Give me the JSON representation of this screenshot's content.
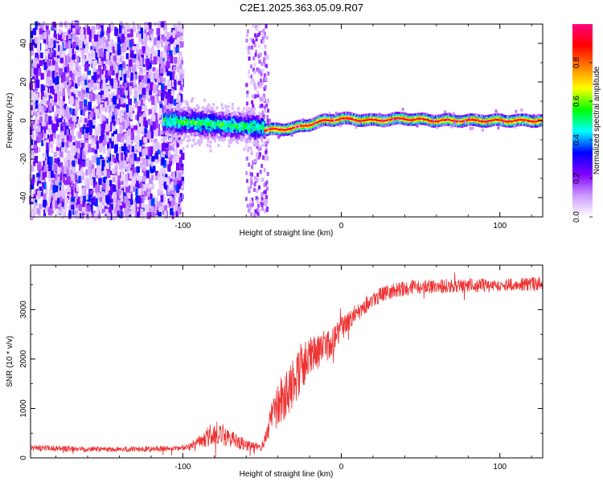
{
  "figure": {
    "title": "C2E1.2025.363.05.09.R07"
  },
  "chart_data": [
    {
      "type": "heatmap",
      "title": "C2E1.2025.363.05.09.R07",
      "xlabel": "Height of straight line (km)",
      "ylabel": "Frequency (Hz)",
      "xlim": [
        -196,
        127
      ],
      "ylim": [
        -50,
        50
      ],
      "xticks": [
        -100,
        0,
        100
      ],
      "yticks": [
        -40,
        -20,
        0,
        20,
        40
      ],
      "colorbar": {
        "label": "Normalized spectral amplitude",
        "range": [
          0,
          1
        ],
        "ticks": [
          0.0,
          0.2,
          0.4,
          0.6,
          0.8
        ],
        "colormap": [
          "#ffffff",
          "#cc99ff",
          "#7f00ff",
          "#0000ff",
          "#00ffff",
          "#00ff00",
          "#ffff00",
          "#ff8000",
          "#ff0000",
          "#ff0080"
        ]
      },
      "features": {
        "noise_region_x": [
          -196,
          -100
        ],
        "sparse_noise_band_x": [
          -60,
          -46
        ],
        "dispersed_cluster_x": [
          -112,
          -48
        ],
        "dispersed_cluster_freq_center": 0,
        "line_trace": [
          {
            "x": -48,
            "freq": -5
          },
          {
            "x": -30,
            "freq": -4
          },
          {
            "x": -20,
            "freq": -2
          },
          {
            "x": -10,
            "freq": 0
          },
          {
            "x": 0,
            "freq": 1
          },
          {
            "x": 20,
            "freq": 0
          },
          {
            "x": 40,
            "freq": 1
          },
          {
            "x": 60,
            "freq": 0
          },
          {
            "x": 80,
            "freq": 0
          },
          {
            "x": 100,
            "freq": 0
          },
          {
            "x": 127,
            "freq": 0
          }
        ]
      }
    },
    {
      "type": "line",
      "xlabel": "Height of straight line (km)",
      "ylabel": "SNR (10 * v/v)",
      "xlim": [
        -196,
        127
      ],
      "ylim": [
        0,
        3900
      ],
      "xticks": [
        -100,
        0,
        100
      ],
      "yticks": [
        0,
        1000,
        2000,
        3000
      ],
      "color": "#ee3333",
      "series": [
        {
          "name": "SNR",
          "x": [
            -196,
            -180,
            -160,
            -140,
            -120,
            -100,
            -95,
            -90,
            -85,
            -80,
            -75,
            -70,
            -65,
            -60,
            -55,
            -50,
            -45,
            -40,
            -35,
            -30,
            -25,
            -20,
            -15,
            -10,
            -5,
            0,
            5,
            10,
            15,
            20,
            25,
            30,
            35,
            40,
            45,
            50,
            60,
            70,
            80,
            90,
            100,
            110,
            127
          ],
          "values": [
            200,
            190,
            180,
            175,
            180,
            190,
            240,
            320,
            420,
            500,
            470,
            400,
            320,
            260,
            220,
            200,
            700,
            1100,
            1300,
            1600,
            1850,
            2000,
            2150,
            2250,
            2400,
            2600,
            2800,
            2950,
            3100,
            3200,
            3300,
            3350,
            3400,
            3420,
            3450,
            3450,
            3470,
            3480,
            3480,
            3490,
            3500,
            3510,
            3520
          ],
          "noise_amplitude": [
            60,
            60,
            60,
            60,
            60,
            60,
            80,
            120,
            200,
            260,
            220,
            180,
            150,
            120,
            90,
            60,
            300,
            450,
            500,
            550,
            500,
            450,
            400,
            350,
            300,
            250,
            220,
            200,
            180,
            170,
            160,
            150,
            150,
            150,
            150,
            150,
            150,
            150,
            140,
            140,
            140,
            140,
            140
          ]
        }
      ]
    }
  ]
}
